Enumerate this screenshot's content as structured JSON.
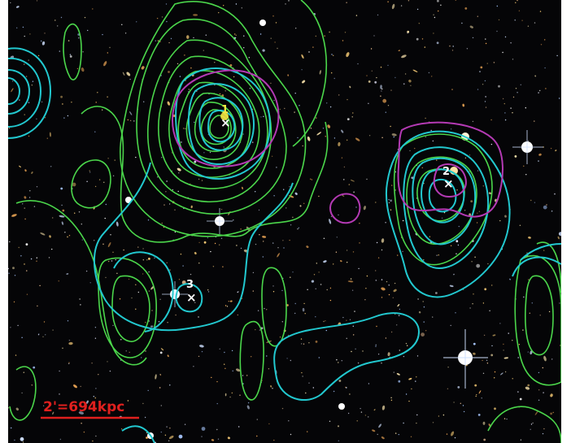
{
  "image": {
    "kind": "astronomical-image-with-contour-overlays",
    "background_color": "#050507",
    "frame_color": "#ffffff"
  },
  "contours": [
    {
      "name": "green-contours",
      "color": "#4bd64b"
    },
    {
      "name": "cyan-contours",
      "color": "#22c8cf"
    },
    {
      "name": "magenta-contours",
      "color": "#b43ab4"
    }
  ],
  "markers": [
    {
      "id": "1",
      "label": "1",
      "symbol": "×",
      "label_color": "#f5e642"
    },
    {
      "id": "2",
      "label": "2",
      "symbol": "×",
      "label_color": "#ffffff"
    },
    {
      "id": "3",
      "label": "3",
      "symbol": "×",
      "label_color": "#ffffff"
    }
  ],
  "scale_bar": {
    "label": "2'=694kpc",
    "color": "#e0201e"
  }
}
